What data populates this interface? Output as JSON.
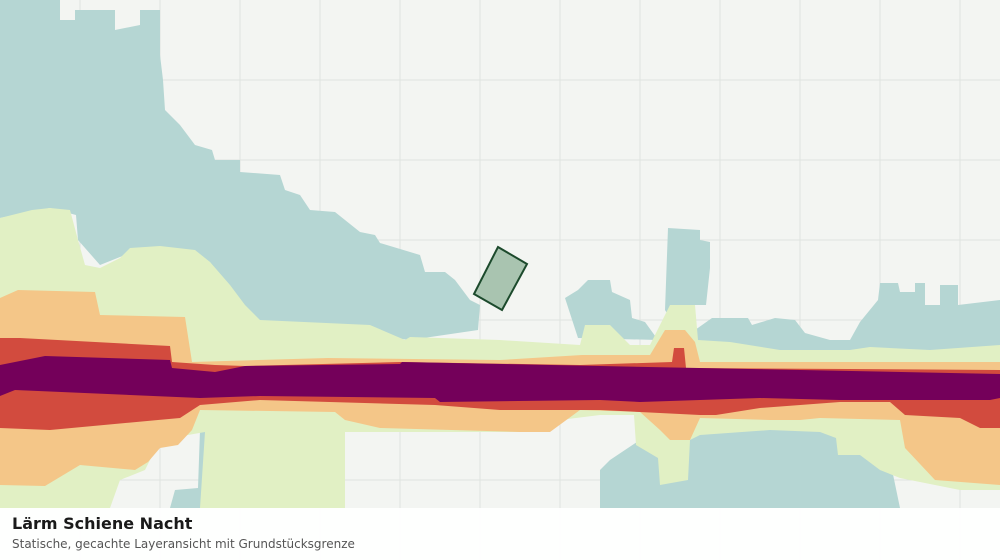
{
  "footer": {
    "title": "Lärm Schiene Nacht",
    "subtitle": "Statische, gecachte Layeransicht mit Grundstücksgrenze"
  }
}
